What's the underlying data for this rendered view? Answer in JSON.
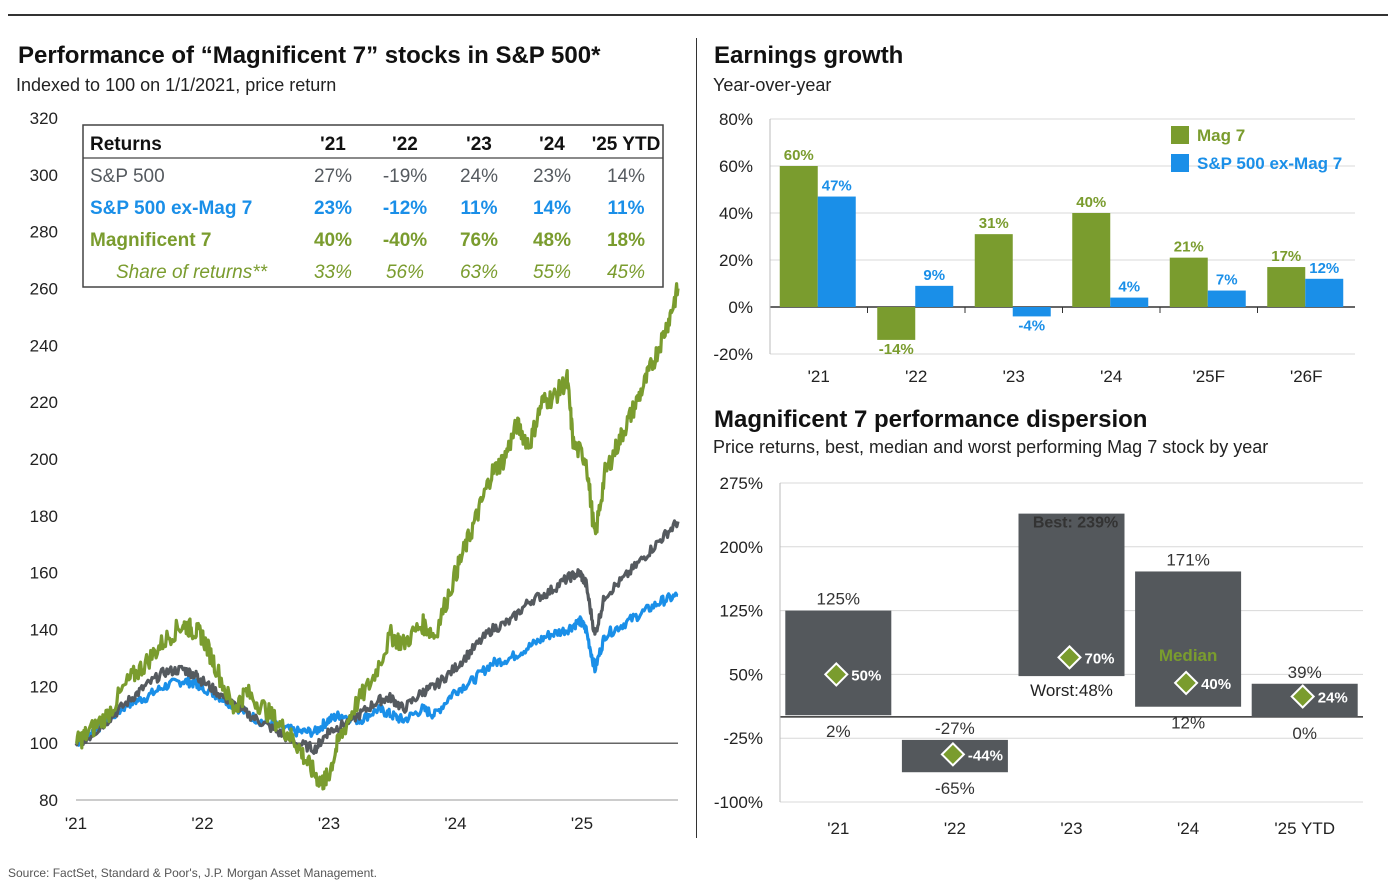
{
  "colors": {
    "mag7": "#7a9c2e",
    "ex_mag7": "#1a8fe8",
    "sp500": "#555a5f",
    "dispersion_bar": "#54585c",
    "diamond": "#7a9c2e"
  },
  "panel_left": {
    "title": "Performance of “Magnificent 7” stocks in S&P 500*",
    "subtitle": "Indexed to 100 on 1/1/2021, price return"
  },
  "panel_earnings": {
    "title": "Earnings growth",
    "subtitle": "Year-over-year"
  },
  "panel_dispersion": {
    "title": "Magnificent 7 performance dispersion",
    "subtitle": "Price returns, best, median and worst performing Mag 7 stock by year"
  },
  "footnote": "Source: FactSet, Standard & Poor's, J.P. Morgan Asset Management.",
  "chart_data": [
    {
      "type": "line",
      "title": "Performance of “Magnificent 7” stocks in S&P 500*",
      "ylim": [
        80,
        320
      ],
      "yticks": [
        80,
        100,
        120,
        140,
        160,
        180,
        200,
        220,
        240,
        260,
        280,
        300,
        320
      ],
      "xticks": [
        "'21",
        "'22",
        "'23",
        "'24",
        "'25"
      ],
      "x_unit": "years since 1/1/2021",
      "series": [
        {
          "name": "Magnificent 7",
          "color_key": "mag7",
          "points": [
            [
              0,
              100
            ],
            [
              0.08,
              103
            ],
            [
              0.25,
              110
            ],
            [
              0.42,
              122
            ],
            [
              0.55,
              128
            ],
            [
              0.7,
              136
            ],
            [
              0.85,
              142
            ],
            [
              0.92,
              140
            ],
            [
              1.0,
              138
            ],
            [
              1.1,
              128
            ],
            [
              1.25,
              112
            ],
            [
              1.35,
              118
            ],
            [
              1.5,
              112
            ],
            [
              1.65,
              105
            ],
            [
              1.75,
              100
            ],
            [
              1.85,
              92
            ],
            [
              1.95,
              86
            ],
            [
              2.0,
              88
            ],
            [
              2.08,
              100
            ],
            [
              2.2,
              112
            ],
            [
              2.35,
              122
            ],
            [
              2.5,
              138
            ],
            [
              2.6,
              135
            ],
            [
              2.75,
              142
            ],
            [
              2.85,
              138
            ],
            [
              3.0,
              158
            ],
            [
              3.1,
              170
            ],
            [
              3.2,
              182
            ],
            [
              3.3,
              195
            ],
            [
              3.4,
              200
            ],
            [
              3.5,
              212
            ],
            [
              3.6,
              205
            ],
            [
              3.7,
              220
            ],
            [
              3.8,
              222
            ],
            [
              3.9,
              228
            ],
            [
              3.95,
              205
            ],
            [
              4.05,
              200
            ],
            [
              4.12,
              172
            ],
            [
              4.2,
              195
            ],
            [
              4.3,
              205
            ],
            [
              4.4,
              215
            ],
            [
              4.5,
              225
            ],
            [
              4.6,
              236
            ],
            [
              4.7,
              248
            ],
            [
              4.78,
              260
            ]
          ]
        },
        {
          "name": "S&P 500",
          "color_key": "sp500",
          "points": [
            [
              0,
              100
            ],
            [
              0.1,
              102
            ],
            [
              0.25,
              108
            ],
            [
              0.42,
              115
            ],
            [
              0.55,
              120
            ],
            [
              0.7,
              125
            ],
            [
              0.85,
              126
            ],
            [
              0.95,
              124
            ],
            [
              1.0,
              122
            ],
            [
              1.15,
              117
            ],
            [
              1.3,
              112
            ],
            [
              1.45,
              108
            ],
            [
              1.6,
              104
            ],
            [
              1.75,
              100
            ],
            [
              1.9,
              98
            ],
            [
              2.0,
              104
            ],
            [
              2.1,
              106
            ],
            [
              2.25,
              110
            ],
            [
              2.4,
              115
            ],
            [
              2.5,
              116
            ],
            [
              2.6,
              112
            ],
            [
              2.75,
              118
            ],
            [
              2.85,
              120
            ],
            [
              3.0,
              126
            ],
            [
              3.15,
              133
            ],
            [
              3.3,
              140
            ],
            [
              3.45,
              143
            ],
            [
              3.6,
              150
            ],
            [
              3.75,
              153
            ],
            [
              3.9,
              158
            ],
            [
              4.0,
              160
            ],
            [
              4.05,
              156
            ],
            [
              4.12,
              138
            ],
            [
              4.2,
              152
            ],
            [
              4.35,
              158
            ],
            [
              4.5,
              165
            ],
            [
              4.65,
              172
            ],
            [
              4.78,
              178
            ]
          ]
        },
        {
          "name": "S&P 500 ex-Mag 7",
          "color_key": "ex_mag7",
          "points": [
            [
              0,
              100
            ],
            [
              0.1,
              103
            ],
            [
              0.25,
              108
            ],
            [
              0.42,
              114
            ],
            [
              0.55,
              116
            ],
            [
              0.7,
              120
            ],
            [
              0.85,
              122
            ],
            [
              0.95,
              121
            ],
            [
              1.0,
              120
            ],
            [
              1.15,
              116
            ],
            [
              1.3,
              112
            ],
            [
              1.45,
              108
            ],
            [
              1.6,
              106
            ],
            [
              1.75,
              104
            ],
            [
              1.9,
              104
            ],
            [
              2.0,
              108
            ],
            [
              2.1,
              110
            ],
            [
              2.25,
              108
            ],
            [
              2.4,
              112
            ],
            [
              2.5,
              110
            ],
            [
              2.6,
              108
            ],
            [
              2.75,
              112
            ],
            [
              2.85,
              110
            ],
            [
              3.0,
              118
            ],
            [
              3.15,
              122
            ],
            [
              3.3,
              128
            ],
            [
              3.45,
              130
            ],
            [
              3.6,
              134
            ],
            [
              3.75,
              138
            ],
            [
              3.9,
              140
            ],
            [
              4.0,
              143
            ],
            [
              4.05,
              140
            ],
            [
              4.12,
              126
            ],
            [
              4.2,
              138
            ],
            [
              4.35,
              142
            ],
            [
              4.5,
              146
            ],
            [
              4.65,
              150
            ],
            [
              4.78,
              152
            ]
          ]
        }
      ],
      "table": {
        "headers": [
          "Returns",
          "'21",
          "'22",
          "'23",
          "'24",
          "'25 YTD"
        ],
        "rows": [
          {
            "label": "S&P 500",
            "color_key": "sp500",
            "values": [
              "27%",
              "-19%",
              "24%",
              "23%",
              "14%"
            ]
          },
          {
            "label": "S&P 500 ex-Mag 7",
            "color_key": "ex_mag7",
            "values": [
              "23%",
              "-12%",
              "11%",
              "14%",
              "11%"
            ]
          },
          {
            "label": "Magnificent 7",
            "color_key": "mag7",
            "values": [
              "40%",
              "-40%",
              "76%",
              "48%",
              "18%"
            ]
          },
          {
            "label": "Share of returns**",
            "color_key": "mag7",
            "italic": true,
            "values": [
              "33%",
              "56%",
              "63%",
              "55%",
              "45%"
            ]
          }
        ]
      }
    },
    {
      "type": "bar",
      "title": "Earnings growth",
      "categories": [
        "'21",
        "'22",
        "'23",
        "'24",
        "'25F",
        "'26F"
      ],
      "ylim": [
        -20,
        80
      ],
      "yticks": [
        -20,
        0,
        20,
        40,
        60,
        80
      ],
      "ytick_labels": [
        "-20%",
        "0%",
        "20%",
        "40%",
        "60%",
        "80%"
      ],
      "legend": "top-right",
      "series": [
        {
          "name": "Mag 7",
          "color_key": "mag7",
          "values": [
            60,
            -14,
            31,
            40,
            21,
            17
          ],
          "labels": [
            "60%",
            "-14%",
            "31%",
            "40%",
            "21%",
            "17%"
          ]
        },
        {
          "name": "S&P 500 ex-Mag 7",
          "color_key": "ex_mag7",
          "values": [
            47,
            9,
            -4,
            4,
            7,
            12
          ],
          "labels": [
            "47%",
            "9%",
            "-4%",
            "4%",
            "7%",
            "12%"
          ]
        }
      ]
    },
    {
      "type": "bar",
      "subtype": "floating range",
      "title": "Magnificent 7 performance dispersion",
      "categories": [
        "'21",
        "'22",
        "'23",
        "'24",
        "'25 YTD"
      ],
      "ylim": [
        -100,
        275
      ],
      "yticks": [
        -100,
        -25,
        50,
        125,
        200,
        275
      ],
      "ytick_labels": [
        "-100%",
        "-25%",
        "50%",
        "125%",
        "200%",
        "275%"
      ],
      "best": [
        125,
        -27,
        239,
        171,
        39
      ],
      "median": [
        50,
        -44,
        70,
        40,
        24
      ],
      "worst": [
        2,
        -65,
        48,
        12,
        0
      ],
      "best_labels": [
        "125%",
        "-27%",
        "Best: 239%",
        "171%",
        "39%"
      ],
      "median_labels": [
        "50%",
        "-44%",
        "70%",
        "40%",
        "24%"
      ],
      "worst_labels": [
        "2%",
        "-65%",
        "Worst:48%",
        "12%",
        "0%"
      ],
      "median_annotation": "Median"
    }
  ]
}
